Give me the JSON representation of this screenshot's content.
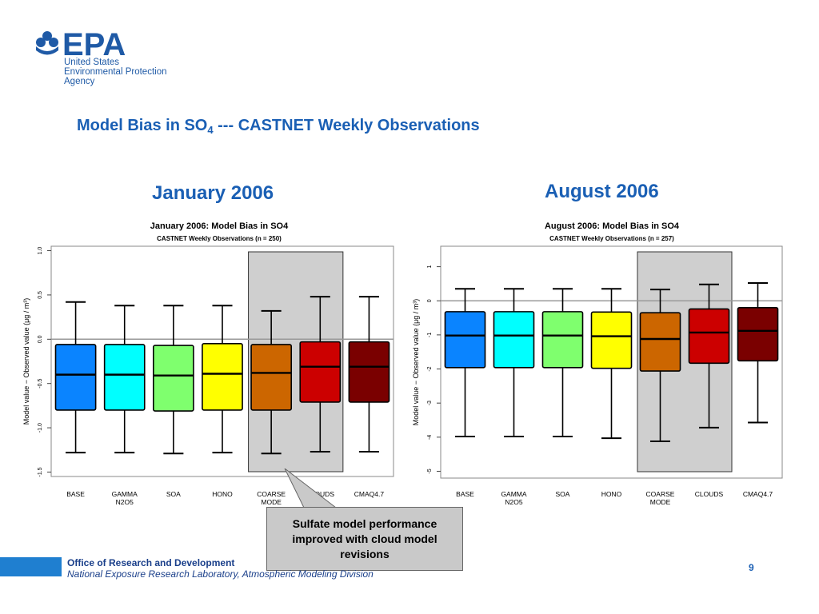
{
  "agency": {
    "logo_text": "EPA",
    "name_lines": [
      "United States",
      "Environmental Protection",
      "Agency"
    ]
  },
  "slide_title": {
    "main": "Model Bias in SO",
    "sub": "4",
    "rest": " --- CASTNET Weekly Observations"
  },
  "panel_headings": [
    "January 2006",
    "August 2006"
  ],
  "callout": {
    "text": "Sulfate model performance improved with cloud model revisions"
  },
  "footer": {
    "office": "Office of Research and Development",
    "lab": "National Exposure Research Laboratory, Atmospheric Modeling Division",
    "page": "9"
  },
  "colors": {
    "brand_blue": "#1a5fb4",
    "boxes": [
      "#0a84ff",
      "#00ffff",
      "#7fff6e",
      "#ffff00",
      "#cc6600",
      "#cc0000",
      "#7a0000"
    ],
    "highlight": "#cfcfcf"
  },
  "chart_data": [
    {
      "type": "box",
      "title": "January  2006: Model Bias in SO4",
      "subtitle": "CASTNET Weekly Observations (n = 250)",
      "ylabel": "Model value − Observed value  (μg / m³)",
      "ylim": [
        -1.55,
        1.05
      ],
      "yticks": [
        -1.5,
        -1.0,
        -0.5,
        0.0,
        0.5,
        1.0
      ],
      "ytick_labels": [
        "-1.5",
        "-1.0",
        "-0.5",
        "0.0",
        "0.5",
        "1.0"
      ],
      "reference_line": 0,
      "highlight_categories": [
        4,
        5
      ],
      "categories": [
        [
          "BASE"
        ],
        [
          "GAMMA",
          "N2O5"
        ],
        [
          "SOA"
        ],
        [
          "HONO"
        ],
        [
          "COARSE",
          "MODE"
        ],
        [
          "CLOUDS"
        ],
        [
          "CMAQ4.7"
        ]
      ],
      "series": [
        {
          "min": -1.28,
          "q1": -0.8,
          "median": -0.4,
          "q3": -0.06,
          "max": 0.42
        },
        {
          "min": -1.28,
          "q1": -0.8,
          "median": -0.4,
          "q3": -0.06,
          "max": 0.38
        },
        {
          "min": -1.29,
          "q1": -0.81,
          "median": -0.41,
          "q3": -0.07,
          "max": 0.38
        },
        {
          "min": -1.28,
          "q1": -0.8,
          "median": -0.39,
          "q3": -0.05,
          "max": 0.38
        },
        {
          "min": -1.29,
          "q1": -0.8,
          "median": -0.38,
          "q3": -0.06,
          "max": 0.32
        },
        {
          "min": -1.27,
          "q1": -0.71,
          "median": -0.31,
          "q3": -0.03,
          "max": 0.48
        },
        {
          "min": -1.27,
          "q1": -0.71,
          "median": -0.31,
          "q3": -0.03,
          "max": 0.48
        }
      ]
    },
    {
      "type": "box",
      "title": "August  2006: Model Bias in SO4",
      "subtitle": "CASTNET Weekly Observations (n = 257)",
      "ylabel": "Model value − Observed value  (μg / m³)",
      "ylim": [
        -5.2,
        1.6
      ],
      "yticks": [
        -5,
        -4,
        -3,
        -2,
        -1,
        0,
        1
      ],
      "ytick_labels": [
        "-5",
        "-4",
        "-3",
        "-2",
        "-1",
        "0",
        "1"
      ],
      "reference_line": 0,
      "highlight_categories": [
        4,
        5
      ],
      "categories": [
        [
          "BASE"
        ],
        [
          "GAMMA",
          "N2O5"
        ],
        [
          "SOA"
        ],
        [
          "HONO"
        ],
        [
          "COARSE",
          "MODE"
        ],
        [
          "CLOUDS"
        ],
        [
          "CMAQ4.7"
        ]
      ],
      "series": [
        {
          "min": -3.98,
          "q1": -1.96,
          "median": -1.02,
          "q3": -0.32,
          "max": 0.35
        },
        {
          "min": -3.98,
          "q1": -1.96,
          "median": -1.02,
          "q3": -0.32,
          "max": 0.35
        },
        {
          "min": -3.98,
          "q1": -1.96,
          "median": -1.02,
          "q3": -0.32,
          "max": 0.35
        },
        {
          "min": -4.03,
          "q1": -1.98,
          "median": -1.04,
          "q3": -0.33,
          "max": 0.35
        },
        {
          "min": -4.12,
          "q1": -2.06,
          "median": -1.12,
          "q3": -0.35,
          "max": 0.33
        },
        {
          "min": -3.72,
          "q1": -1.83,
          "median": -0.93,
          "q3": -0.24,
          "max": 0.48
        },
        {
          "min": -3.57,
          "q1": -1.76,
          "median": -0.88,
          "q3": -0.2,
          "max": 0.52
        }
      ]
    }
  ]
}
